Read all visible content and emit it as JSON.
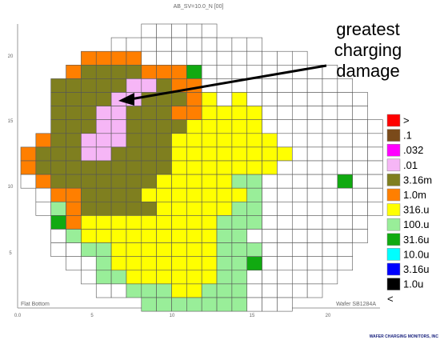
{
  "chart_data": {
    "type": "heatmap",
    "title": "AB_SV=10.0_N  [00]",
    "corner_label_left": "Flat Bottom",
    "corner_label_right": "Wafer SB1284A",
    "credit": "WAFER CHARGING MONITORS, INC",
    "annotation": [
      "greatest",
      "charging",
      "damage"
    ],
    "x_ticks": [
      "0.0",
      "5",
      "10",
      "15",
      "20"
    ],
    "y_ticks": [
      "20",
      "15",
      "10",
      "5"
    ],
    "legend": [
      {
        "label": ">",
        "color": "#ff0000"
      },
      {
        "label": ".1",
        "color": "#7a4a1a"
      },
      {
        "label": ".032",
        "color": "#ff00ff"
      },
      {
        "label": ".01",
        "color": "#f6b6f6"
      },
      {
        "label": "3.16m",
        "color": "#7f7f1f"
      },
      {
        "label": "1.0m",
        "color": "#ff7f00"
      },
      {
        "label": "316.u",
        "color": "#ffff00"
      },
      {
        "label": "100.u",
        "color": "#99ee99"
      },
      {
        "label": "31.6u",
        "color": "#11aa11"
      },
      {
        "label": "10.0u",
        "color": "#00ffff"
      },
      {
        "label": "3.16u",
        "color": "#0000ff"
      },
      {
        "label": "1.0u",
        "color": "#000000"
      },
      {
        "label": "<",
        "color": "#ffffff"
      }
    ],
    "grid": {
      "cols": 24,
      "rows": [
        "........WWWWW...........",
        "......WWWWWWWWWW........",
        "....OOOOWWWWWWWWWWW.....",
        "...OEEEEOOOGWWWWWWWWW...",
        "..EEEEEPPEOOWWWWWWWWWW..",
        "..EEEEPPEEEOYWYWWWWWWWW.",
        "..EEEPPEEEOOYYYYWWWWWWW.",
        "..EEEPPEEEEYYYYYWWWWWWWW",
        ".OEEPPPEEEYYYYYYYWWWWWWW",
        "OEEEPPEEEEYYYYYYYYWWWWWW",
        "OEEEEEEEEEYYYYYYYWWWWWWW",
        "WOEEEEEEEYYYYYLLWWWWWGWW",
        ".WOOEEEEYYYYYYYLWWWWWWWW",
        ".WLOEEEEEYYYYYLLWWWWWWWW",
        "..GOYYYYYYYYYLLLWWWWWWW.",
        "..WLYYYYYYYYYLLWWWWWWWW.",
        "..WWLLYYYYYYYLLLWWWWWW..",
        "...WWLYYYYYYYLLGWWWWWW..",
        "....WLLYYYYYYLLWWWWWW...",
        ".....WWLLLYYLLLWWWWW....",
        "........LLLLLLLWWW......"
      ],
      "key": {
        "W": "<",
        "Y": "316.u",
        "L": "100.u",
        "G": "31.6u",
        "O": "1.0m",
        "E": "3.16m",
        "P": ".01"
      }
    }
  }
}
